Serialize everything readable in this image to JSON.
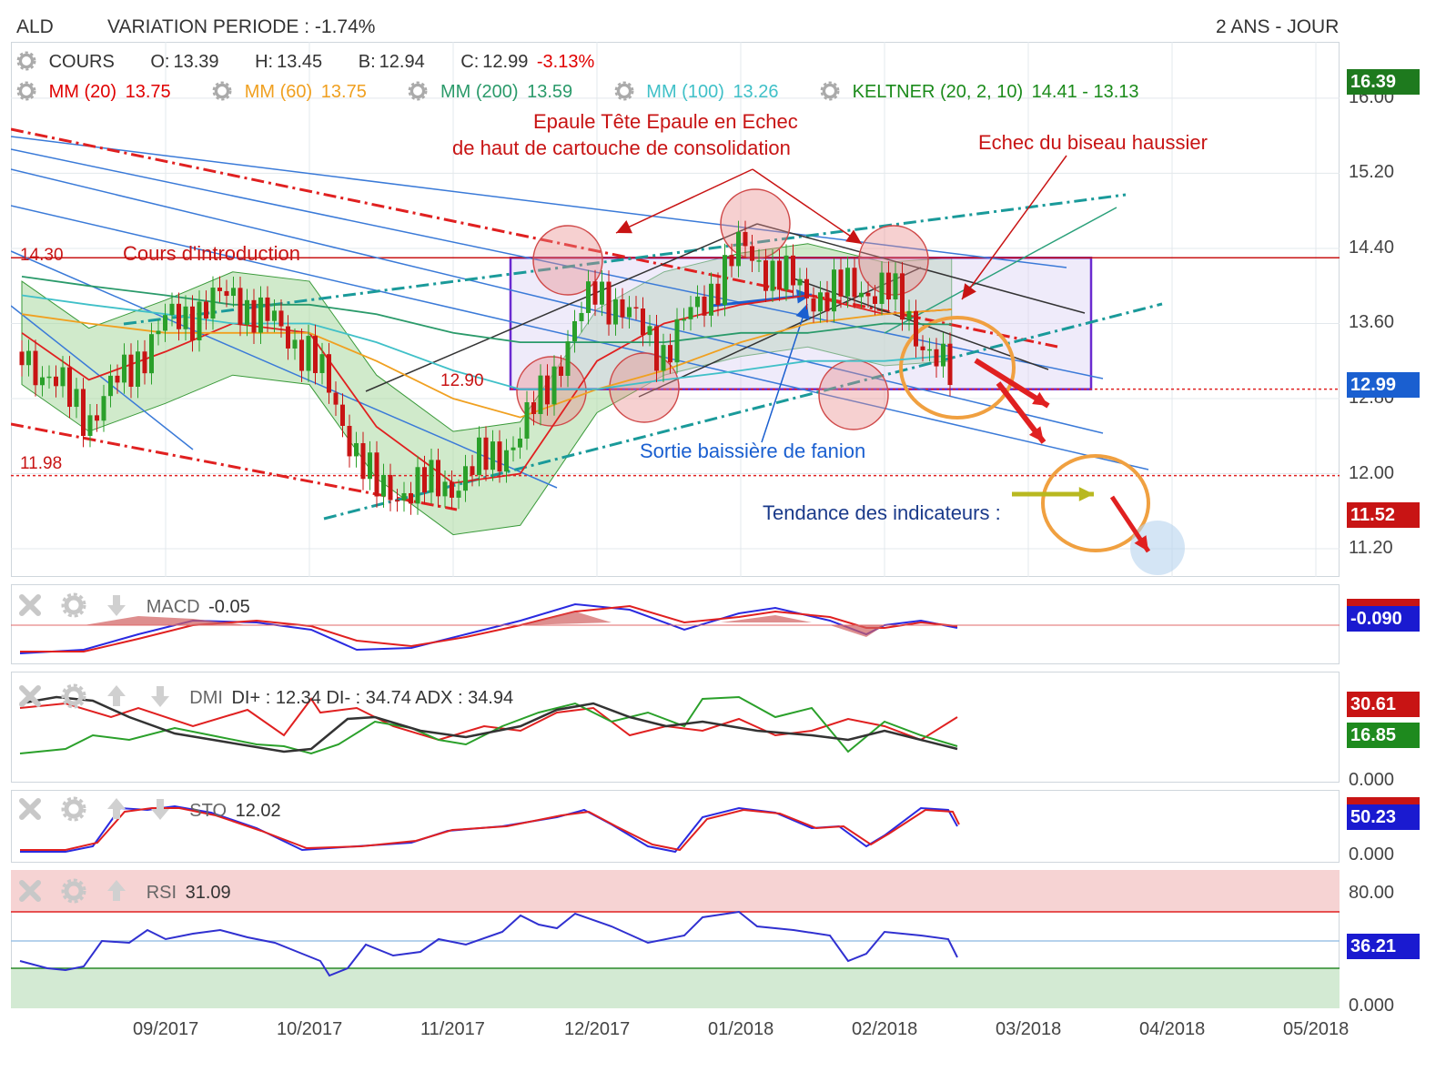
{
  "header": {
    "ticker": "ALD",
    "variation": "VARIATION PERIODE : -1.74%",
    "period": "2 ANS - JOUR"
  },
  "legend": {
    "cours": {
      "label": "COURS",
      "o": "O:",
      "o_val": "13.39",
      "h": "H:",
      "h_val": "13.45",
      "b": "B:",
      "b_val": "12.94",
      "c": "C:",
      "c_val": "12.99",
      "chg": "-3.13%"
    },
    "mm20": {
      "label": "MM (20)",
      "value": "13.75",
      "color": "#e00000"
    },
    "mm60": {
      "label": "MM (60)",
      "value": "13.75",
      "color": "#f0a020"
    },
    "mm200": {
      "label": "MM (200)",
      "value": "13.59",
      "color": "#2a9a6a"
    },
    "mm100": {
      "label": "MM (100)",
      "value": "13.26",
      "color": "#40c0c8"
    },
    "keltner": {
      "label": "KELTNER (20, 2, 10)",
      "value": "14.41 - 13.13",
      "color": "#1a8a1a"
    }
  },
  "price_axis": {
    "ticks": [
      "16.00",
      "15.20",
      "14.40",
      "13.60",
      "12.80",
      "12.00",
      "11.20"
    ]
  },
  "price_tags": [
    {
      "value": "16.39",
      "color": "#1e7a1e"
    },
    {
      "value": "12.99",
      "color": "#1a5fd0"
    },
    {
      "value": "11.52",
      "color": "#c81414"
    }
  ],
  "x_axis": {
    "ticks": [
      "09/2017",
      "10/2017",
      "11/2017",
      "12/2017",
      "01/2018",
      "02/2018",
      "03/2018",
      "04/2018",
      "05/2018"
    ]
  },
  "annotations": {
    "intro_level": "14.30",
    "intro_label": "Cours d'introduction",
    "level_1290": "12.90",
    "level_1198": "11.98",
    "ete_line1": "Epaule Tête Epaule en Echec",
    "ete_line2": "de haut de cartouche de consolidation",
    "biseau": "Echec du biseau haussier",
    "fanion": "Sortie baissière de fanion",
    "tendance": "Tendance des indicateurs :"
  },
  "macd": {
    "label": "MACD",
    "value": "-0.05",
    "tag": "-0.090",
    "tag_color": "#1a1ad0"
  },
  "dmi": {
    "label": "DMI",
    "text": "DI+ : 12.34 DI- : 34.74 ADX : 34.94",
    "tags": [
      {
        "value": "30.61",
        "color": "#c81414"
      },
      {
        "value": "16.85",
        "color": "#1e8a1e"
      }
    ],
    "tick": "0.000"
  },
  "sto": {
    "label": "STO",
    "value": "12.02",
    "tag": "50.23",
    "tag_color": "#1a1ad0",
    "tick": "0.000"
  },
  "rsi": {
    "label": "RSI",
    "value": "31.09",
    "tag": "36.21",
    "tag_color": "#1a1ad0",
    "ticks": [
      "80.00",
      "0.000"
    ]
  },
  "chart_data": {
    "type": "line",
    "title": "ALD",
    "subtitle": "2 ANS - JOUR",
    "xlabel": "",
    "ylabel": "",
    "ylim": [
      10.9,
      16.6
    ],
    "x": [
      "2017-08-01",
      "2017-08-15",
      "2017-09-01",
      "2017-09-15",
      "2017-10-01",
      "2017-10-15",
      "2017-11-01",
      "2017-11-15",
      "2017-12-01",
      "2017-12-15",
      "2018-01-01",
      "2018-01-15",
      "2018-02-01",
      "2018-02-15"
    ],
    "series": [
      {
        "name": "COURS",
        "values": [
          13.3,
          12.6,
          13.6,
          13.9,
          13.3,
          11.8,
          11.9,
          12.4,
          14.0,
          13.3,
          14.4,
          13.9,
          14.0,
          12.99
        ]
      },
      {
        "name": "MM (20)",
        "values": [
          13.5,
          13.0,
          13.3,
          13.6,
          13.5,
          12.5,
          11.9,
          12.0,
          13.2,
          13.6,
          13.8,
          13.9,
          13.7,
          13.75
        ]
      },
      {
        "name": "MM (60)",
        "values": [
          13.7,
          13.6,
          13.5,
          13.5,
          13.5,
          13.2,
          12.8,
          12.6,
          12.9,
          13.1,
          13.4,
          13.6,
          13.7,
          13.75
        ]
      },
      {
        "name": "MM (100)",
        "values": [
          13.9,
          13.8,
          13.7,
          13.6,
          13.6,
          13.4,
          13.1,
          12.9,
          12.9,
          13.0,
          13.1,
          13.2,
          13.2,
          13.26
        ]
      },
      {
        "name": "MM (200)",
        "values": [
          14.1,
          14.0,
          13.9,
          13.8,
          13.8,
          13.7,
          13.5,
          13.4,
          13.4,
          13.4,
          13.5,
          13.5,
          13.6,
          13.59
        ]
      }
    ],
    "levels": [
      14.3,
      12.9,
      11.98
    ]
  }
}
